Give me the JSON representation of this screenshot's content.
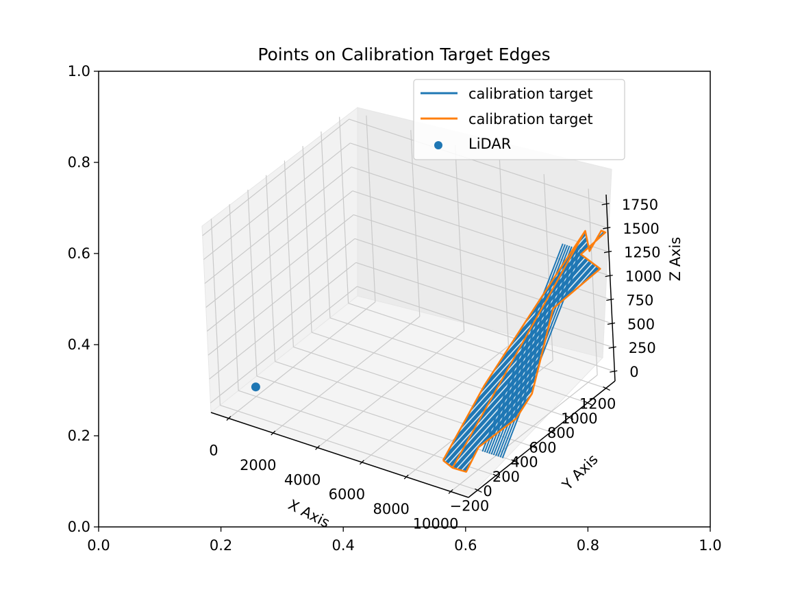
{
  "chart_data": {
    "type": "line",
    "title": "Points on Calibration Target Edges",
    "outer_axes": {
      "xlim": [
        0.0,
        1.0
      ],
      "ylim": [
        0.0,
        1.0
      ],
      "xticks": [
        "0.0",
        "0.2",
        "0.4",
        "0.6",
        "0.8",
        "1.0"
      ],
      "yticks": [
        "0.0",
        "0.2",
        "0.4",
        "0.6",
        "0.8",
        "1.0"
      ]
    },
    "axes3d": {
      "xlabel": "X Axis",
      "ylabel": "Y Axis",
      "zlabel": "Z Axis",
      "xlim": [
        -800,
        10800
      ],
      "ylim": [
        -300,
        1300
      ],
      "zlim": [
        -100,
        1850
      ],
      "xticks": [
        0,
        2000,
        4000,
        6000,
        8000,
        10000
      ],
      "yticks": [
        -200,
        0,
        200,
        400,
        600,
        800,
        1000,
        1200
      ],
      "zticks": [
        0,
        250,
        500,
        750,
        1000,
        1250,
        1500,
        1750
      ],
      "xtick_labels": [
        "0",
        "2000",
        "4000",
        "6000",
        "8000",
        "10000"
      ],
      "ytick_labels": [
        "−200",
        "0",
        "200",
        "400",
        "600",
        "800",
        "1000",
        "1200"
      ],
      "ztick_labels": [
        "0",
        "250",
        "500",
        "750",
        "1000",
        "1250",
        "1500",
        "1750"
      ],
      "grid": true
    },
    "legend": {
      "location": "upper right",
      "entries": [
        {
          "label": "calibration target",
          "color": "#1f77b4",
          "marker": "line"
        },
        {
          "label": "calibration target",
          "color": "#ff7f0e",
          "marker": "line"
        },
        {
          "label": "LiDAR",
          "color": "#1f77b4",
          "marker": "dot"
        }
      ]
    },
    "series": [
      {
        "name": "calibration target",
        "color": "#1f77b4",
        "kind": "fill-lines",
        "x": [
          9800,
          9900,
          10000,
          10100,
          10200,
          10300,
          10400,
          10500,
          10600,
          10700
        ],
        "y_range": [
          100,
          1050
        ],
        "z_range": [
          0,
          1450
        ]
      },
      {
        "name": "calibration target",
        "color": "#ff7f0e",
        "kind": "outline",
        "points": [
          {
            "x": 9500,
            "y": -250,
            "z": 150
          },
          {
            "x": 9700,
            "y": -200,
            "z": 50
          },
          {
            "x": 10100,
            "y": -150,
            "z": 0
          },
          {
            "x": 10500,
            "y": -100,
            "z": 250
          },
          {
            "x": 10750,
            "y": 250,
            "z": 300
          },
          {
            "x": 10450,
            "y": 500,
            "z": 350
          },
          {
            "x": 10500,
            "y": 600,
            "z": 650
          },
          {
            "x": 10300,
            "y": 800,
            "z": 1000
          },
          {
            "x": 10800,
            "y": 1200,
            "z": 1150
          },
          {
            "x": 10600,
            "y": 1050,
            "z": 1400
          },
          {
            "x": 10900,
            "y": 1250,
            "z": 1500
          },
          {
            "x": 10500,
            "y": 1300,
            "z": 1450
          },
          {
            "x": 10350,
            "y": 1200,
            "z": 1300
          },
          {
            "x": 10200,
            "y": 1200,
            "z": 1500
          },
          {
            "x": 10050,
            "y": 900,
            "z": 1250
          },
          {
            "x": 9800,
            "y": 600,
            "z": 950
          },
          {
            "x": 9600,
            "y": 200,
            "z": 600
          },
          {
            "x": 9500,
            "y": -250,
            "z": 150
          }
        ]
      },
      {
        "name": "LiDAR",
        "color": "#1f77b4",
        "kind": "scatter",
        "points": [
          {
            "x": 0,
            "y": 0,
            "z": 0
          }
        ]
      }
    ]
  }
}
